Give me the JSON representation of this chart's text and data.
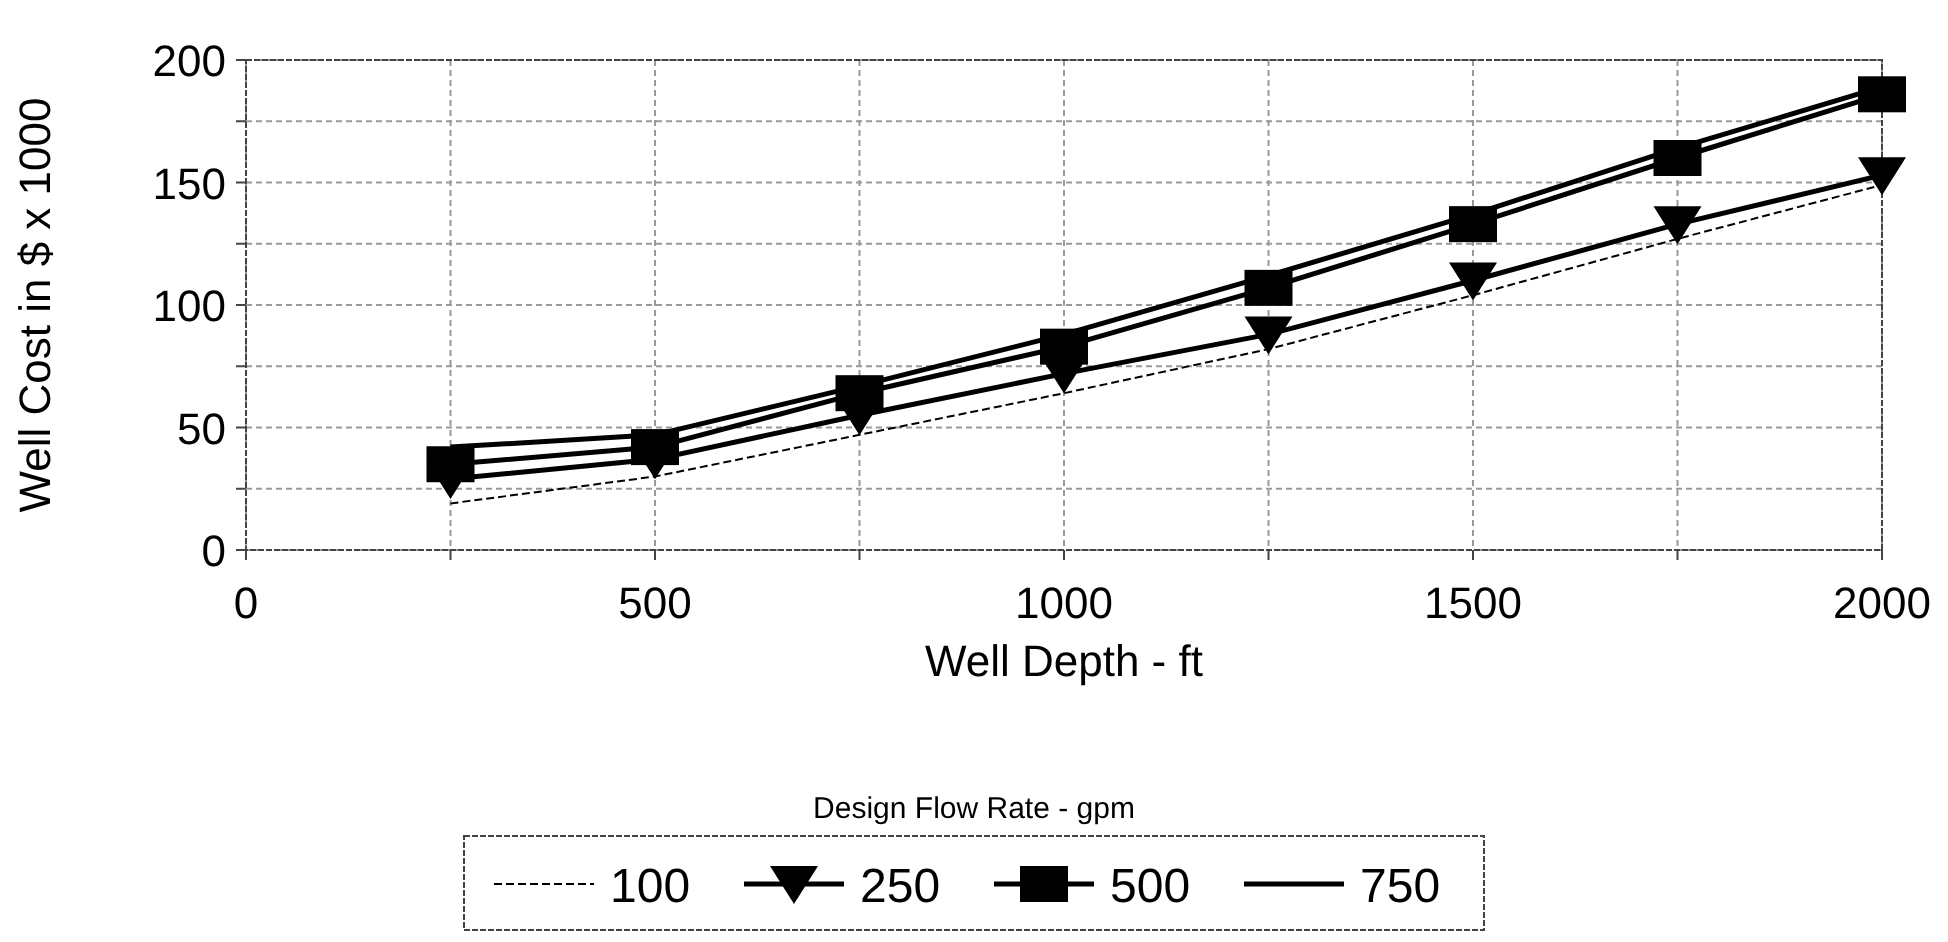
{
  "chart_data": {
    "type": "line",
    "xlabel": "Well Depth - ft",
    "ylabel": "Well Cost in $ x 1000",
    "legend_title": "Design Flow Rate - gpm",
    "legend": "bottom",
    "grid": true,
    "x": [
      250,
      500,
      750,
      1000,
      1250,
      1500,
      1750,
      2000
    ],
    "xlim": [
      0,
      2000
    ],
    "xticks": [
      0,
      {
        "value": 250,
        "label": null
      },
      500,
      {
        "value": 750,
        "label": null
      },
      1000,
      {
        "value": 1250,
        "label": null
      },
      1500,
      {
        "value": 1750,
        "label": null
      },
      2000
    ],
    "ylim": [
      0,
      200
    ],
    "yticks": [
      0,
      {
        "value": 25,
        "label": null
      },
      50,
      {
        "value": 75,
        "label": null
      },
      100,
      {
        "value": 125,
        "label": null
      },
      150,
      {
        "value": 175,
        "label": null
      },
      200
    ],
    "series": [
      {
        "name": "100",
        "color": "#000000",
        "marker": "none",
        "line_style": "dashed",
        "values": [
          19,
          30,
          47,
          64,
          82,
          104,
          127,
          149
        ]
      },
      {
        "name": "250",
        "color": "#000000",
        "marker": "triangle",
        "line_style": "solid",
        "values": [
          29,
          37,
          55,
          72,
          88,
          110,
          133,
          153
        ]
      },
      {
        "name": "500",
        "color": "#000000",
        "marker": "square",
        "line_style": "solid",
        "values": [
          35,
          42,
          64,
          83,
          107,
          133,
          160,
          186
        ]
      },
      {
        "name": "750",
        "color": "#000000",
        "marker": "none",
        "line_style": "solid",
        "values": [
          42,
          47,
          67,
          88,
          112,
          137,
          164,
          189
        ]
      }
    ]
  }
}
